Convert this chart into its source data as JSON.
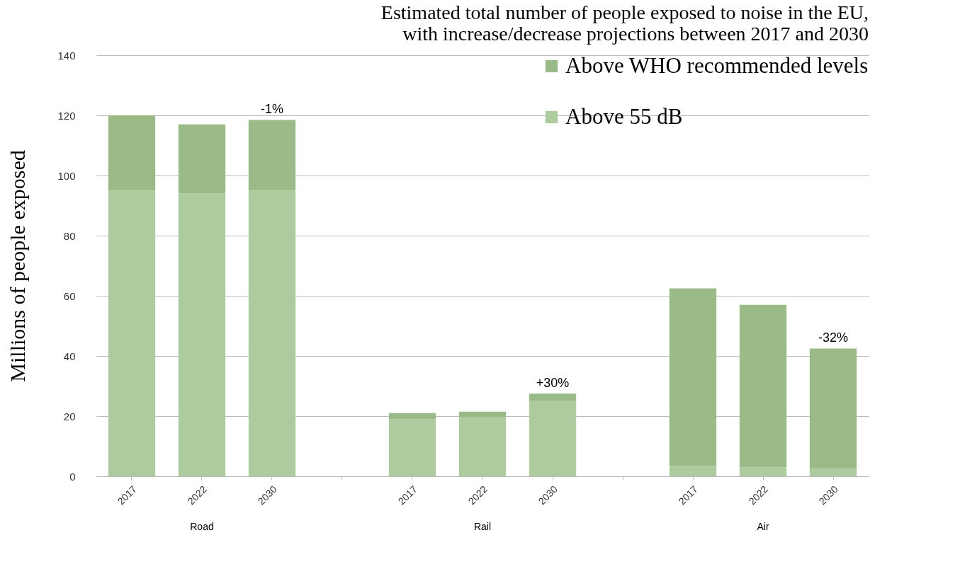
{
  "chart_data": {
    "type": "bar",
    "title": [
      "Estimated total number of people exposed to noise in the EU,",
      "with increase/decrease projections between 2017 and 2030"
    ],
    "ylabel": "Millions of people exposed",
    "categories": [
      "2017",
      "2022",
      "2030",
      null,
      "2017",
      "2022",
      "2030",
      null,
      "2017",
      "2022",
      "2030"
    ],
    "stacked": true,
    "series": [
      {
        "name": "Above 55 dB",
        "color": "#aecba0",
        "values": [
          95,
          94,
          95,
          null,
          19,
          19.5,
          25,
          null,
          3.5,
          3,
          2.5
        ]
      },
      {
        "name": "Above WHO recommended levels",
        "color": "#9aba88",
        "values": [
          25,
          23,
          23.5,
          null,
          2,
          2,
          2.5,
          null,
          59,
          54,
          40
        ]
      }
    ],
    "ylim": [
      0,
      140
    ],
    "yticks": [
      0,
      20,
      40,
      60,
      80,
      100,
      120,
      140
    ],
    "grid": "y",
    "legend": "top right",
    "annotations": [
      "Road",
      "Rail",
      "Air",
      "-1%",
      "+30%",
      "-32%"
    ]
  }
}
